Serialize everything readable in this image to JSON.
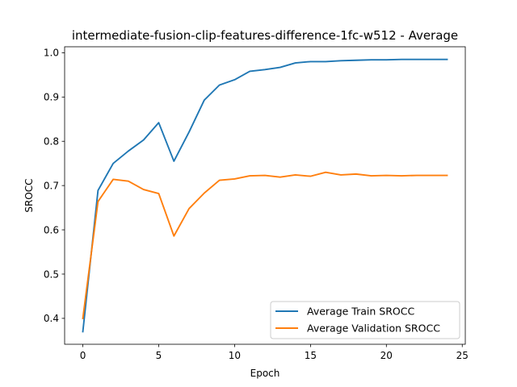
{
  "chart_data": {
    "type": "line",
    "title": "intermediate-fusion-clip-features-difference-1fc-w512 - Average",
    "xlabel": "Epoch",
    "ylabel": "SROCC",
    "xlim": [
      -1.2,
      25.2
    ],
    "ylim": [
      0.3415,
      1.0135
    ],
    "x_ticks": [
      0,
      5,
      10,
      15,
      20,
      25
    ],
    "y_ticks": [
      0.4,
      0.5,
      0.6,
      0.7,
      0.8,
      0.9,
      1.0
    ],
    "x_tick_labels": [
      "0",
      "5",
      "10",
      "15",
      "20",
      "25"
    ],
    "y_tick_labels": [
      "0.4",
      "0.5",
      "0.6",
      "0.7",
      "0.8",
      "0.9",
      "1.0"
    ],
    "grid": false,
    "legend_position": "lower-right",
    "x": [
      0,
      1,
      2,
      3,
      4,
      5,
      6,
      7,
      8,
      9,
      10,
      11,
      12,
      13,
      14,
      15,
      16,
      17,
      18,
      19,
      20,
      21,
      22,
      23,
      24
    ],
    "series": [
      {
        "name": "Average Train SROCC",
        "color": "#1f77b4",
        "values": [
          0.37,
          0.689,
          0.75,
          0.778,
          0.803,
          0.842,
          0.755,
          0.821,
          0.893,
          0.927,
          0.939,
          0.958,
          0.962,
          0.967,
          0.977,
          0.98,
          0.98,
          0.982,
          0.983,
          0.984,
          0.984,
          0.985,
          0.985,
          0.985,
          0.985
        ]
      },
      {
        "name": "Average Validation SROCC",
        "color": "#ff7f0e",
        "values": [
          0.4,
          0.664,
          0.714,
          0.71,
          0.691,
          0.682,
          0.586,
          0.648,
          0.683,
          0.712,
          0.715,
          0.722,
          0.723,
          0.719,
          0.724,
          0.721,
          0.73,
          0.724,
          0.726,
          0.722,
          0.723,
          0.722,
          0.723,
          0.723,
          0.723
        ]
      }
    ]
  }
}
